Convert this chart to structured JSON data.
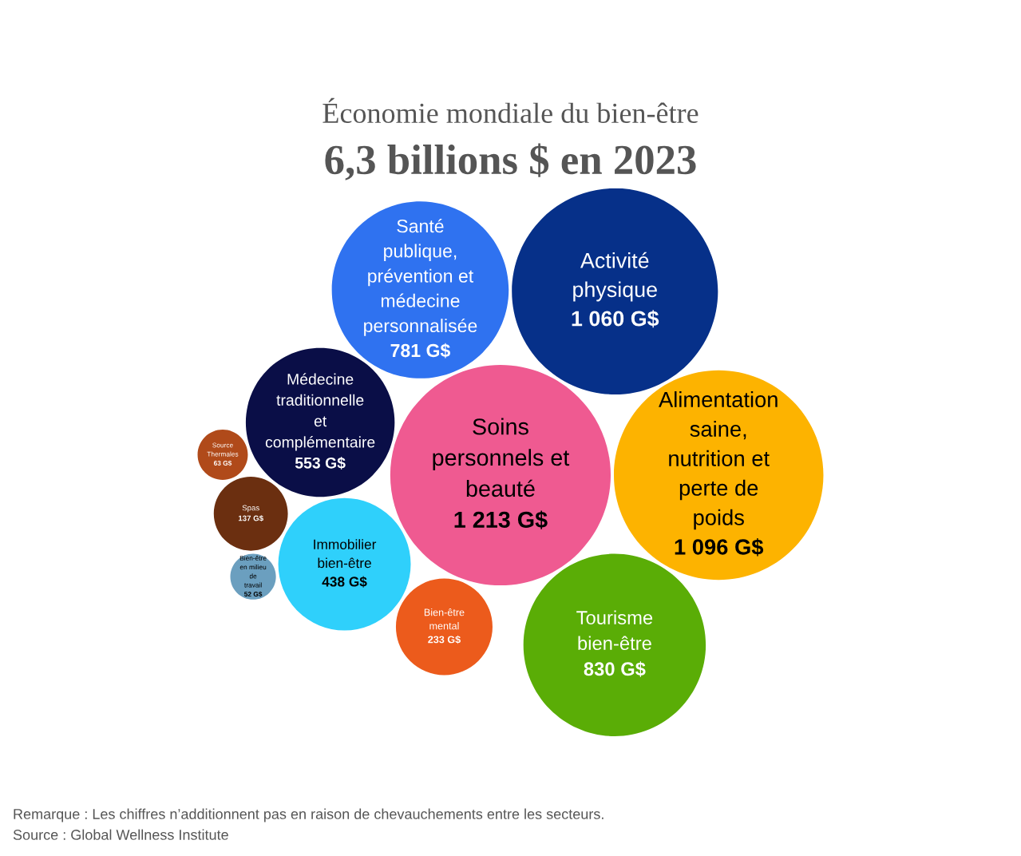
{
  "chart_data": {
    "type": "other",
    "title": "Économie mondiale du bien-être",
    "subtitle": "6,3 billions $ en 2023",
    "categories": [
      "Médecine traditionnelle et complémentaire",
      "Immobilier bien-être",
      "Bien-être mental",
      "Tourisme bien-être",
      "Soins personnels et beauté",
      "Santé publique, prévention et médecine personnalisée",
      "Bien-être en milieu de travail",
      "Alimentation saine, nutrition et perte de poids",
      "Activité physique",
      "Source Thermales",
      "Spas"
    ],
    "values": [
      553,
      438,
      233,
      830,
      1213,
      781,
      52,
      1096,
      1060,
      63,
      137
    ],
    "value_labels": [
      "553 G$",
      "438 G$",
      "233 G$",
      "830 G$",
      "1 213 G$",
      "781 G$",
      "52 G$",
      "1 096 G$",
      "1 060 G$",
      "63 G$",
      "137 G$"
    ],
    "colors": [
      "#0a0e47",
      "#2fd0fb",
      "#ec5b1c",
      "#5aad06",
      "#ef5a91",
      "#2f72f0",
      "#6b9fbf",
      "#fdb300",
      "#063089",
      "#b04a1a",
      "#6b2f10"
    ],
    "annotations": [
      "Remarque : Les chiffres n’additionnent pas en raison de chevauchements entre les secteurs.",
      "Source : Global Wellness Institute"
    ]
  }
}
